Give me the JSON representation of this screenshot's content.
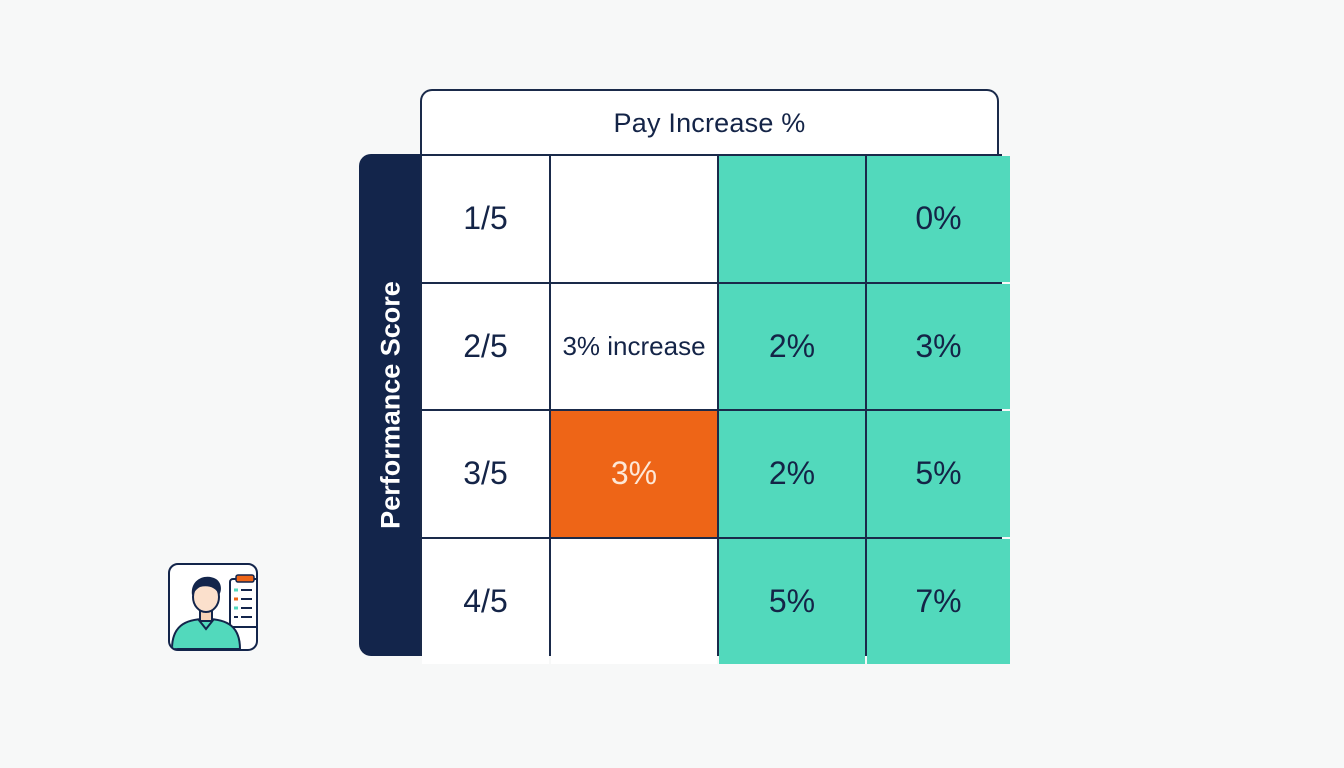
{
  "header": {
    "title": "Pay Increase %"
  },
  "side": {
    "label": "Performance Score"
  },
  "rows": [
    {
      "score": "1/5",
      "c1": "",
      "c2": "",
      "c3": "0%"
    },
    {
      "score": "2/5",
      "c1": "3% increase",
      "c2": "2%",
      "c3": "3%"
    },
    {
      "score": "3/5",
      "c1": "3%",
      "c2": "2%",
      "c3": "5%"
    },
    {
      "score": "4/5",
      "c1": "",
      "c2": "5%",
      "c3": "7%"
    }
  ],
  "colors": {
    "navy": "#13254b",
    "teal": "#52d9bc",
    "orange": "#ee6517"
  },
  "icons": {
    "illustration": "employee-evaluation-icon"
  }
}
